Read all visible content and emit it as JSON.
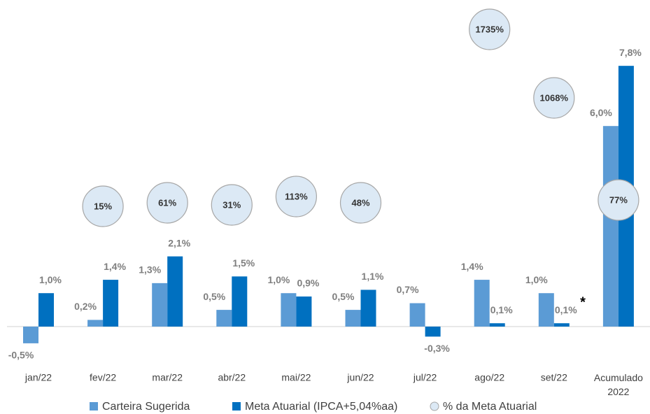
{
  "chart_data": {
    "type": "bar",
    "categories": [
      "jan/22",
      "fev/22",
      "mar/22",
      "abr/22",
      "mai/22",
      "jun/22",
      "jul/22",
      "ago/22",
      "set/22",
      "Acumulado 2022"
    ],
    "series": [
      {
        "name": "Carteira Sugerida",
        "color": "#5b9bd5",
        "values": [
          -0.5,
          0.2,
          1.3,
          0.5,
          1.0,
          0.5,
          0.7,
          1.4,
          1.0,
          6.0
        ],
        "value_labels": [
          "-0,5%",
          "0,2%",
          "1,3%",
          "0,5%",
          "1,0%",
          "0,5%",
          "0,7%",
          "1,4%",
          "1,0%",
          "6,0%"
        ]
      },
      {
        "name": "Meta Atuarial (IPCA+5,04%aa)",
        "color": "#0070c0",
        "values": [
          1.0,
          1.4,
          2.1,
          1.5,
          0.9,
          1.1,
          -0.3,
          0.1,
          0.1,
          7.8
        ],
        "value_labels": [
          "1,0%",
          "1,4%",
          "2,1%",
          "1,5%",
          "0,9%",
          "1,1%",
          "-0,3%",
          "0,1%",
          "0,1%",
          "7,8%"
        ]
      },
      {
        "name": "% da Meta Atuarial",
        "color": "#dce9f5",
        "type": "bubble",
        "values": [
          null,
          15,
          61,
          31,
          113,
          48,
          null,
          1735,
          1068,
          77
        ],
        "value_labels": [
          null,
          "15%",
          "61%",
          "31%",
          "113%",
          "48%",
          null,
          "1735%",
          "1068%",
          "77%"
        ]
      }
    ],
    "annotations": [
      "*"
    ]
  }
}
